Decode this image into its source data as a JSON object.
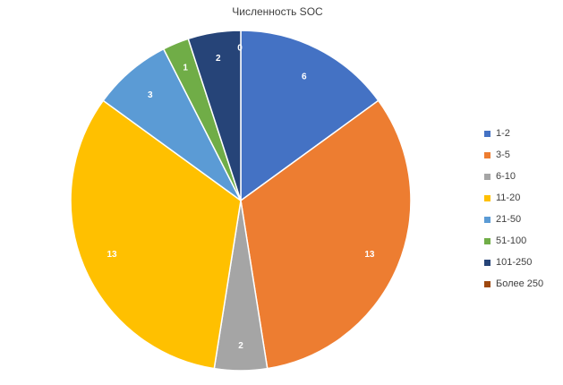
{
  "chart_data": {
    "type": "pie",
    "title": "Численность SOC",
    "categories": [
      "1-2",
      "3-5",
      "6-10",
      "11-20",
      "21-50",
      "51-100",
      "101-250",
      "Более 250"
    ],
    "values": [
      6,
      13,
      2,
      13,
      3,
      1,
      2,
      0
    ],
    "colors": [
      "#4472C4",
      "#ED7D31",
      "#A5A5A5",
      "#FFC000",
      "#5B9BD5",
      "#70AD47",
      "#264478",
      "#9E480E"
    ],
    "data_labels": true,
    "legend": "right"
  }
}
